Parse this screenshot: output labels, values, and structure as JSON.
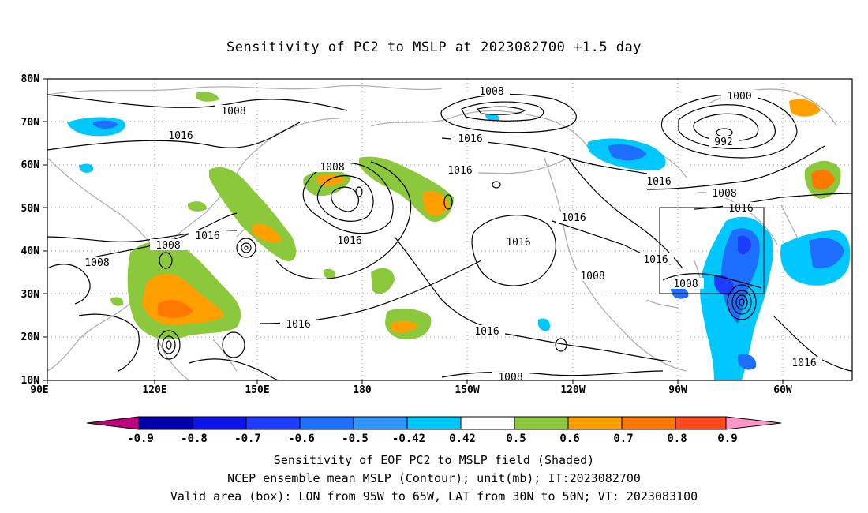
{
  "title": "Sensitivity of PC2 to MSLP at 2023082700 +1.5 day",
  "axes": {
    "lat_labels": [
      "80N",
      "70N",
      "60N",
      "50N",
      "40N",
      "30N",
      "20N",
      "10N"
    ],
    "lon_labels": [
      "90E",
      "120E",
      "150E",
      "180",
      "150W",
      "120W",
      "90W",
      "60W"
    ]
  },
  "contour_labels": [
    "1008",
    "1016",
    "1008",
    "1008",
    "1016",
    "1016",
    "1016",
    "1016",
    "1008",
    "1016",
    "1016",
    "1000",
    "992",
    "1016",
    "1008",
    "1016",
    "1016",
    "1008",
    "1008",
    "1016",
    "1016",
    "1008",
    "1016",
    "1008"
  ],
  "colorbar": {
    "labels": [
      "-0.9",
      "-0.8",
      "-0.7",
      "-0.6",
      "-0.5",
      "-0.42",
      "0.42",
      "0.5",
      "0.6",
      "0.7",
      "0.8",
      "0.9"
    ],
    "colors": [
      "#c00080",
      "#0000aa",
      "#0a14e6",
      "#1e3cff",
      "#1e6eff",
      "#3296ff",
      "#00c8ff",
      "#ffffff",
      "#8cc83c",
      "#ffa000",
      "#ff7800",
      "#ff4a1e",
      "#ff1e1e",
      "#ff96c8"
    ]
  },
  "captions": [
    "Sensitivity of EOF PC2 to MSLP field (Shaded)",
    "NCEP ensemble mean MSLP (Contour); unit(mb); IT:2023082700",
    "Valid area (box): LON from 95W to 65W, LAT from 30N to 50N; VT: 2023083100"
  ]
}
